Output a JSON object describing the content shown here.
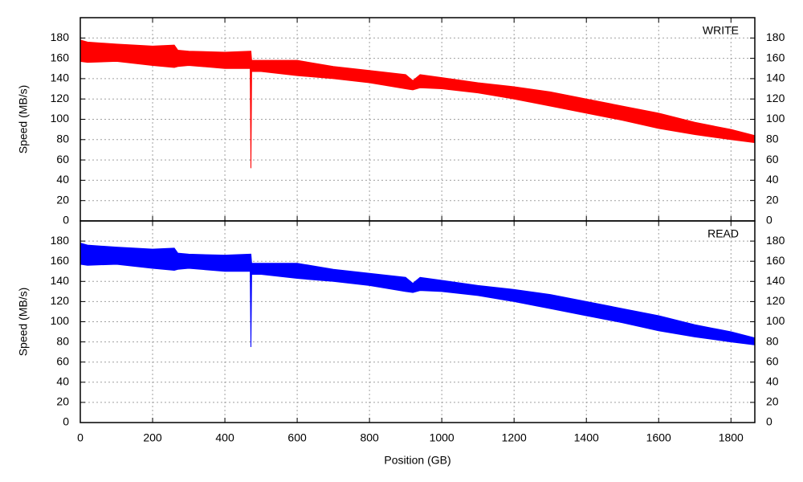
{
  "chart_data": [
    {
      "type": "range",
      "label": "WRITE",
      "ylabel": "Speed (MB/s)",
      "color": "#ff0000",
      "x": [
        0,
        20,
        100,
        200,
        260,
        270,
        300,
        400,
        470,
        472,
        474,
        500,
        600,
        700,
        800,
        900,
        920,
        940,
        1000,
        1100,
        1200,
        1300,
        1400,
        1500,
        1600,
        1700,
        1800,
        1866
      ],
      "low": [
        157,
        156,
        157,
        153,
        151,
        152,
        153,
        150,
        150,
        52,
        147,
        147,
        143,
        140,
        136,
        130,
        129,
        131,
        130,
        126,
        120,
        113,
        106,
        99,
        91,
        85,
        80,
        77
      ],
      "high": [
        178,
        176,
        174,
        172,
        173,
        168,
        167,
        166,
        167,
        167,
        158,
        158,
        158,
        152,
        148,
        144,
        138,
        144,
        141,
        136,
        132,
        127,
        120,
        113,
        106,
        97,
        90,
        84
      ],
      "xlim": [
        0,
        1866
      ],
      "ylim": [
        0,
        200
      ],
      "yticks": [
        0,
        20,
        40,
        60,
        80,
        100,
        120,
        140,
        160,
        180
      ],
      "grid": true
    },
    {
      "type": "range",
      "label": "READ",
      "ylabel": "Speed (MB/s)",
      "xlabel": "Position (GB)",
      "color": "#0000ff",
      "x": [
        0,
        20,
        100,
        200,
        260,
        270,
        300,
        400,
        470,
        472,
        474,
        500,
        600,
        700,
        800,
        900,
        920,
        940,
        1000,
        1100,
        1200,
        1300,
        1400,
        1500,
        1600,
        1700,
        1800,
        1866
      ],
      "low": [
        157,
        156,
        157,
        153,
        151,
        152,
        153,
        150,
        150,
        75,
        147,
        147,
        143,
        140,
        136,
        130,
        129,
        131,
        130,
        126,
        120,
        113,
        106,
        99,
        91,
        85,
        80,
        77
      ],
      "high": [
        178,
        176,
        174,
        172,
        173,
        168,
        167,
        166,
        167,
        167,
        158,
        158,
        158,
        152,
        148,
        144,
        138,
        144,
        141,
        136,
        132,
        127,
        120,
        113,
        106,
        97,
        90,
        84
      ],
      "xlim": [
        0,
        1866
      ],
      "ylim": [
        0,
        200
      ],
      "yticks": [
        0,
        20,
        40,
        60,
        80,
        100,
        120,
        140,
        160,
        180
      ],
      "xticks": [
        0,
        200,
        400,
        600,
        800,
        1000,
        1200,
        1400,
        1600,
        1800
      ],
      "grid": true
    }
  ]
}
